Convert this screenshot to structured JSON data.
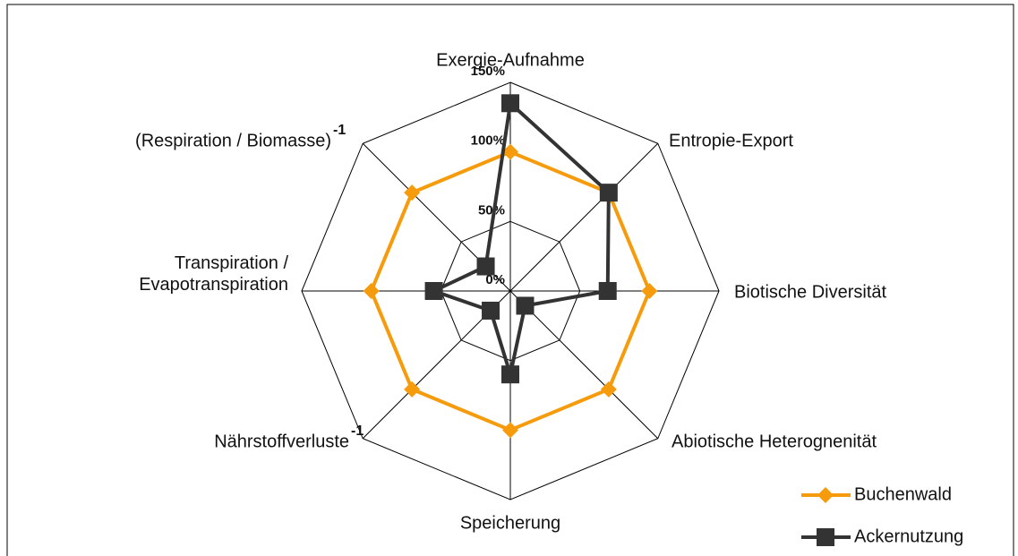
{
  "chart_data": {
    "type": "radar",
    "categories": [
      "Exergie-Aufnahme",
      "Entropie-Export",
      "Biotische Diversität",
      "Abiotische Heterognenität",
      "Speicherung",
      "Nährstoffverluste",
      [
        "Transpiration /",
        "Evapotranspiration"
      ],
      "(Respiration / Biomasse)"
    ],
    "category_exponents": [
      null,
      null,
      null,
      null,
      null,
      "-1",
      null,
      "-1"
    ],
    "series": [
      {
        "name": "Buchenwald",
        "color": "#f59b0c",
        "marker": "diamond",
        "values": [
          100,
          100,
          100,
          100,
          100,
          100,
          100,
          100
        ]
      },
      {
        "name": "Ackernutzung",
        "color": "#333333",
        "marker": "square",
        "values": [
          135,
          100,
          70,
          15,
          60,
          20,
          55,
          25
        ]
      }
    ],
    "rlim": [
      0,
      150
    ],
    "rticks": [
      {
        "value": 0,
        "label": "0%"
      },
      {
        "value": 50,
        "label": "50%"
      },
      {
        "value": 100,
        "label": "100%"
      },
      {
        "value": 150,
        "label": "150%"
      }
    ],
    "grid": true,
    "legend": "lower right"
  }
}
